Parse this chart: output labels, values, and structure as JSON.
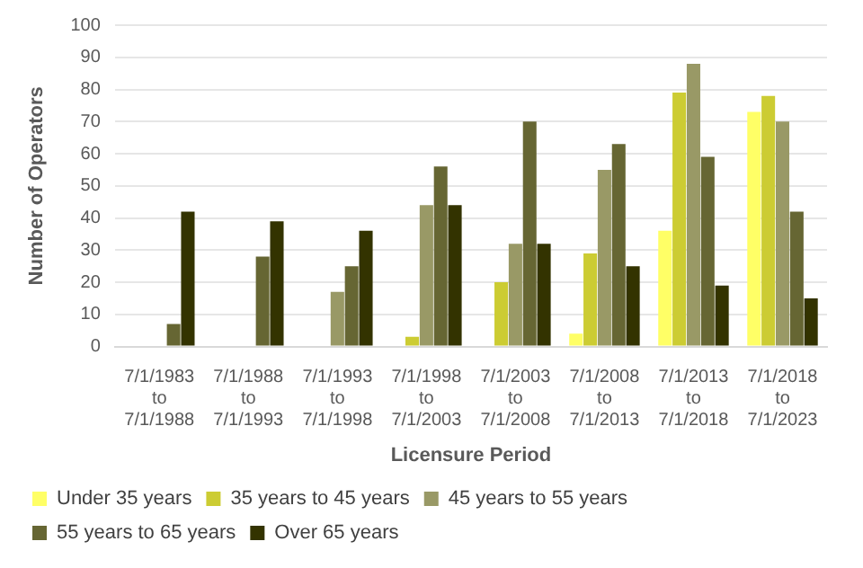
{
  "chart_data": {
    "type": "bar",
    "xlabel": "Licensure Period",
    "ylabel": "Number of Operators",
    "categories": [
      "7/1/1983 to 7/1/1988",
      "7/1/1988 to 7/1/1993",
      "7/1/1993 to 7/1/1998",
      "7/1/1998 to 7/1/2003",
      "7/1/2003 to 7/1/2008",
      "7/1/2008 to 7/1/2013",
      "7/1/2013 to 7/1/2018",
      "7/1/2018 to 7/1/2023"
    ],
    "series": [
      {
        "name": "Under 35 years",
        "color": "#ffff66",
        "values": [
          0,
          0,
          0,
          0,
          0,
          4,
          36,
          73
        ]
      },
      {
        "name": "35 years to 45 years",
        "color": "#cccc33",
        "values": [
          0,
          0,
          0,
          3,
          20,
          29,
          79,
          78
        ]
      },
      {
        "name": "45 years to 55 years",
        "color": "#999966",
        "values": [
          0,
          0,
          17,
          44,
          32,
          55,
          88,
          70
        ]
      },
      {
        "name": "55 years to 65 years",
        "color": "#666633",
        "values": [
          7,
          28,
          25,
          56,
          70,
          63,
          59,
          42
        ]
      },
      {
        "name": "Over 65 years",
        "color": "#333300",
        "values": [
          42,
          39,
          36,
          44,
          32,
          25,
          19,
          15
        ]
      }
    ],
    "ylim": [
      0,
      100
    ],
    "yticks": [
      0,
      10,
      20,
      30,
      40,
      50,
      60,
      70,
      80,
      90,
      100
    ],
    "grid": "y",
    "legend": "bottom"
  }
}
